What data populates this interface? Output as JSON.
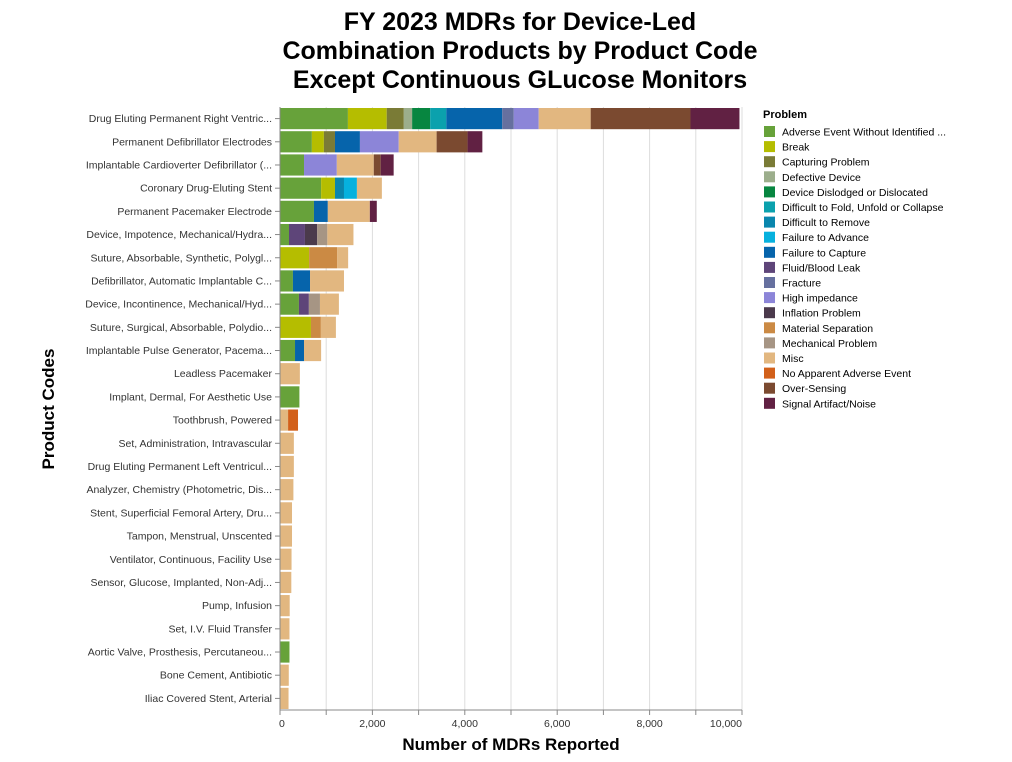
{
  "chart_data": {
    "type": "bar",
    "orientation": "horizontal",
    "stacked": true,
    "title": [
      "FY 2023 MDRs for Device-Led",
      "Combination Products by Product Code",
      "Except Continuous GLucose Monitors"
    ],
    "xlabel": "Number of MDRs Reported",
    "ylabel": "Product Codes",
    "xlim": [
      0,
      10000
    ],
    "xticks": [
      0,
      2000,
      4000,
      6000,
      8000,
      10000
    ],
    "xtick_labels": [
      "0",
      "2,000",
      "4,000",
      "6,000",
      "8,000",
      "10,000"
    ],
    "grid": true,
    "grid_step": 1000,
    "legend": {
      "title": "Problem",
      "placement": "right"
    },
    "problems": [
      {
        "name": "Adverse Event Without Identified ...",
        "color": "#67a23a"
      },
      {
        "name": "Break",
        "color": "#b5bd00"
      },
      {
        "name": "Capturing Problem",
        "color": "#7a7b36"
      },
      {
        "name": "Defective Device",
        "color": "#9cae8c"
      },
      {
        "name": "Device Dislodged or Dislocated",
        "color": "#078640"
      },
      {
        "name": "Difficult to Fold, Unfold or Collapse",
        "color": "#0ba1ad"
      },
      {
        "name": "Difficult to Remove",
        "color": "#0a86ad"
      },
      {
        "name": "Failure to Advance",
        "color": "#06b1de"
      },
      {
        "name": "Failure to Capture",
        "color": "#0664ab"
      },
      {
        "name": "Fluid/Blood Leak",
        "color": "#5e4579"
      },
      {
        "name": "Fracture",
        "color": "#66709f"
      },
      {
        "name": "High impedance",
        "color": "#8c85d8"
      },
      {
        "name": "Inflation Problem",
        "color": "#4b3a4c"
      },
      {
        "name": "Material Separation",
        "color": "#cb8a44"
      },
      {
        "name": "Mechanical Problem",
        "color": "#a69584"
      },
      {
        "name": "Misc",
        "color": "#e2b780"
      },
      {
        "name": "No Apparent Adverse Event",
        "color": "#d2601a"
      },
      {
        "name": "Over-Sensing",
        "color": "#7b4a30"
      },
      {
        "name": "Signal Artifact/Noise",
        "color": "#612143"
      }
    ],
    "categories": [
      "Drug Eluting Permanent Right Ventric...",
      "Permanent Defibrillator Electrodes",
      "Implantable Cardioverter Defibrillator (...",
      "Coronary Drug-Eluting Stent",
      "Permanent Pacemaker Electrode",
      "Device, Impotence, Mechanical/Hydra...",
      "Suture, Absorbable, Synthetic, Polygl...",
      "Defibrillator, Automatic Implantable C...",
      "Device, Incontinence, Mechanical/Hyd...",
      "Suture, Surgical, Absorbable, Polydio...",
      "Implantable Pulse Generator, Pacema...",
      "Leadless Pacemaker",
      "Implant, Dermal, For Aesthetic Use",
      "Toothbrush, Powered",
      "Set, Administration, Intravascular",
      "Drug Eluting Permanent Left Ventricul...",
      "Analyzer, Chemistry (Photometric, Dis...",
      "Stent, Superficial Femoral Artery, Dru...",
      "Tampon, Menstrual, Unscented",
      "Ventilator, Continuous, Facility Use",
      "Sensor, Glucose, Implanted, Non-Adj...",
      "Pump, Infusion",
      "Set, I.V. Fluid Transfer",
      "Aortic Valve, Prosthesis, Percutaneou...",
      "Bone Cement, Antibiotic",
      "Iliac Covered Stent, Arterial"
    ],
    "stacks": [
      [
        {
          "p": "Adverse Event Without Identified ...",
          "v": 1470
        },
        {
          "p": "Break",
          "v": 840
        },
        {
          "p": "Capturing Problem",
          "v": 370
        },
        {
          "p": "Defective Device",
          "v": 180
        },
        {
          "p": "Device Dislodged or Dislocated",
          "v": 390
        },
        {
          "p": "Difficult to Fold, Unfold or Collapse",
          "v": 350
        },
        {
          "p": "Failure to Capture",
          "v": 1210
        },
        {
          "p": "Fracture",
          "v": 250
        },
        {
          "p": "High impedance",
          "v": 540
        },
        {
          "p": "Misc",
          "v": 1125
        },
        {
          "p": "Over-Sensing",
          "v": 2160
        },
        {
          "p": "Signal Artifact/Noise",
          "v": 1060
        }
      ],
      [
        {
          "p": "Adverse Event Without Identified ...",
          "v": 690
        },
        {
          "p": "Break",
          "v": 260
        },
        {
          "p": "Capturing Problem",
          "v": 240
        },
        {
          "p": "Failure to Capture",
          "v": 540
        },
        {
          "p": "High impedance",
          "v": 840
        },
        {
          "p": "Misc",
          "v": 820
        },
        {
          "p": "Over-Sensing",
          "v": 670
        },
        {
          "p": "Signal Artifact/Noise",
          "v": 320
        }
      ],
      [
        {
          "p": "Adverse Event Without Identified ...",
          "v": 520
        },
        {
          "p": "High impedance",
          "v": 710
        },
        {
          "p": "Misc",
          "v": 800
        },
        {
          "p": "Over-Sensing",
          "v": 150
        },
        {
          "p": "Signal Artifact/Noise",
          "v": 280
        }
      ],
      [
        {
          "p": "Adverse Event Without Identified ...",
          "v": 890
        },
        {
          "p": "Break",
          "v": 300
        },
        {
          "p": "Difficult to Remove",
          "v": 195
        },
        {
          "p": "Failure to Advance",
          "v": 280
        },
        {
          "p": "Misc",
          "v": 540
        }
      ],
      [
        {
          "p": "Adverse Event Without Identified ...",
          "v": 735
        },
        {
          "p": "Failure to Capture",
          "v": 300
        },
        {
          "p": "Misc",
          "v": 910
        },
        {
          "p": "Signal Artifact/Noise",
          "v": 150
        }
      ],
      [
        {
          "p": "Adverse Event Without Identified ...",
          "v": 195
        },
        {
          "p": "Fluid/Blood Leak",
          "v": 345
        },
        {
          "p": "Inflation Problem",
          "v": 265
        },
        {
          "p": "Mechanical Problem",
          "v": 220
        },
        {
          "p": "Misc",
          "v": 565
        }
      ],
      [
        {
          "p": "Break",
          "v": 630
        },
        {
          "p": "Material Separation",
          "v": 605
        },
        {
          "p": "Misc",
          "v": 240
        }
      ],
      [
        {
          "p": "Adverse Event Without Identified ...",
          "v": 280
        },
        {
          "p": "Failure to Capture",
          "v": 370
        },
        {
          "p": "Misc",
          "v": 735
        }
      ],
      [
        {
          "p": "Adverse Event Without Identified ...",
          "v": 410
        },
        {
          "p": "Fluid/Blood Leak",
          "v": 215
        },
        {
          "p": "Mechanical Problem",
          "v": 240
        },
        {
          "p": "Misc",
          "v": 410
        }
      ],
      [
        {
          "p": "Break",
          "v": 670
        },
        {
          "p": "Material Separation",
          "v": 215
        },
        {
          "p": "Misc",
          "v": 325
        }
      ],
      [
        {
          "p": "Adverse Event Without Identified ...",
          "v": 325
        },
        {
          "p": "Failure to Capture",
          "v": 195
        },
        {
          "p": "Misc",
          "v": 370
        }
      ],
      [
        {
          "p": "Misc",
          "v": 430
        }
      ],
      [
        {
          "p": "Adverse Event Without Identified ...",
          "v": 420
        }
      ],
      [
        {
          "p": "Misc",
          "v": 175
        },
        {
          "p": "No Apparent Adverse Event",
          "v": 215
        }
      ],
      [
        {
          "p": "Misc",
          "v": 300
        }
      ],
      [
        {
          "p": "Misc",
          "v": 300
        }
      ],
      [
        {
          "p": "Misc",
          "v": 290
        }
      ],
      [
        {
          "p": "Misc",
          "v": 260
        }
      ],
      [
        {
          "p": "Misc",
          "v": 260
        }
      ],
      [
        {
          "p": "Misc",
          "v": 250
        }
      ],
      [
        {
          "p": "Misc",
          "v": 245
        }
      ],
      [
        {
          "p": "Misc",
          "v": 210
        }
      ],
      [
        {
          "p": "Misc",
          "v": 205
        }
      ],
      [
        {
          "p": "Adverse Event Without Identified ...",
          "v": 205
        }
      ],
      [
        {
          "p": "Misc",
          "v": 190
        }
      ],
      [
        {
          "p": "Misc",
          "v": 185
        }
      ]
    ]
  }
}
